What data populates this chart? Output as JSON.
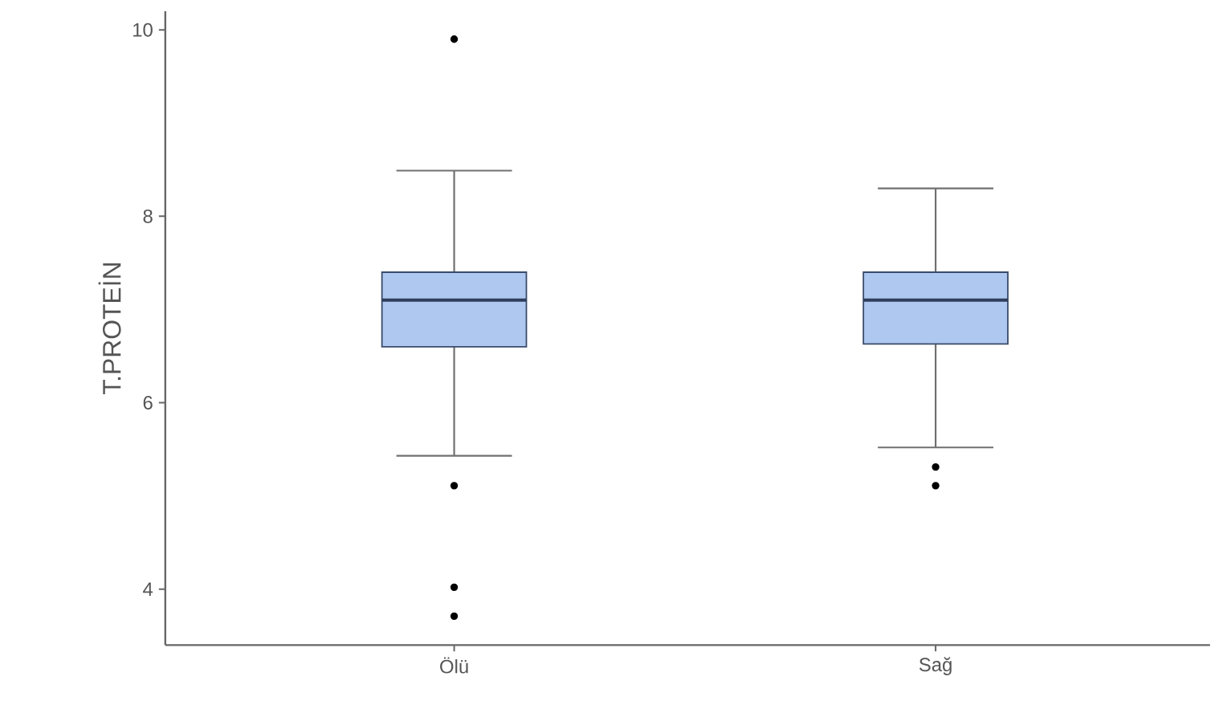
{
  "chart_data": {
    "type": "box",
    "ylabel": "T.PROTEİN",
    "categories": [
      "Ölü",
      "Sağ"
    ],
    "color": "#aec8f0",
    "boxes": [
      {
        "low": 5.43,
        "q1": 6.6,
        "median": 7.1,
        "q3": 7.4,
        "high": 8.49,
        "outliers": [
          9.9,
          5.11,
          4.02,
          3.71
        ]
      },
      {
        "low": 5.52,
        "q1": 6.63,
        "median": 7.1,
        "q3": 7.4,
        "high": 8.3,
        "outliers": [
          5.31,
          5.11
        ]
      }
    ],
    "ylim": [
      3.4,
      10.2
    ],
    "yticks": [
      4,
      6,
      8,
      10
    ]
  }
}
